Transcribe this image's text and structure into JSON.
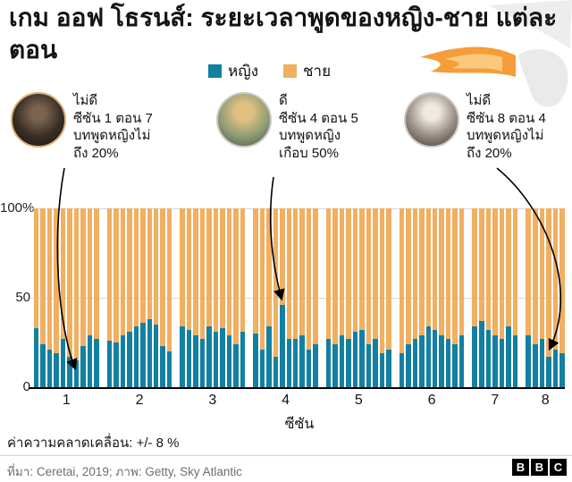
{
  "title": "เกม ออฟ โธรนส์: ระยะเวลาพูดของหญิง-ชาย แต่ละตอน",
  "legend": {
    "female": "หญิง",
    "male": "ชาย"
  },
  "colors": {
    "female": "#1380A1",
    "male": "#F0AF61",
    "axis": "#000000",
    "grid": "#D6D6D6"
  },
  "annotations": [
    {
      "lines": [
        "ไม่ดี",
        "ซีซัน 1 ตอน 7",
        "บทพูดหญิงไม่",
        "ถึง 20%"
      ]
    },
    {
      "lines": [
        "ดี",
        "ซีซัน 4 ตอน 5",
        "บทพูดหญิง",
        "เกือบ 50%"
      ]
    },
    {
      "lines": [
        "ไม่ดี",
        "ซีซัน 8 ตอน 4",
        "บทพูดหญิงไม่",
        "ถึง 20%"
      ]
    }
  ],
  "chart_data": {
    "type": "bar",
    "stacked": true,
    "unit": "%",
    "ylim": [
      0,
      100
    ],
    "yticks": [
      100,
      50,
      0
    ],
    "ytick_labels": [
      "100%",
      "50",
      "0"
    ],
    "xlabel": "ซีซัน",
    "legend_position": "top",
    "series_names": [
      "หญิง",
      "ชาย"
    ],
    "note": "male value = 100 - female value (100% stacked)",
    "seasons": [
      {
        "label": "1",
        "female_pct": [
          33,
          24,
          21,
          19,
          27,
          17,
          15,
          23,
          29,
          27
        ]
      },
      {
        "label": "2",
        "female_pct": [
          26,
          25,
          29,
          31,
          34,
          36,
          38,
          35,
          23,
          20
        ]
      },
      {
        "label": "3",
        "female_pct": [
          34,
          32,
          29,
          27,
          34,
          31,
          33,
          29,
          24,
          31
        ]
      },
      {
        "label": "4",
        "female_pct": [
          30,
          21,
          34,
          17,
          46,
          27,
          27,
          29,
          21,
          24
        ]
      },
      {
        "label": "5",
        "female_pct": [
          27,
          24,
          29,
          27,
          31,
          32,
          24,
          27,
          19,
          21
        ]
      },
      {
        "label": "6",
        "female_pct": [
          19,
          24,
          27,
          29,
          34,
          32,
          29,
          27,
          24,
          29
        ]
      },
      {
        "label": "7",
        "female_pct": [
          34,
          37,
          32,
          29,
          27,
          34,
          29
        ]
      },
      {
        "label": "8",
        "female_pct": [
          29,
          24,
          27,
          17,
          21,
          19
        ]
      }
    ]
  },
  "margin_note": "ค่าความคลาดเคลื่อน: +/- 8 %",
  "footer": {
    "source": "ที่มา: Ceretai, 2019; ภาพ: Getty, Sky Atlantic",
    "logo_letters": [
      "B",
      "B",
      "C"
    ]
  }
}
